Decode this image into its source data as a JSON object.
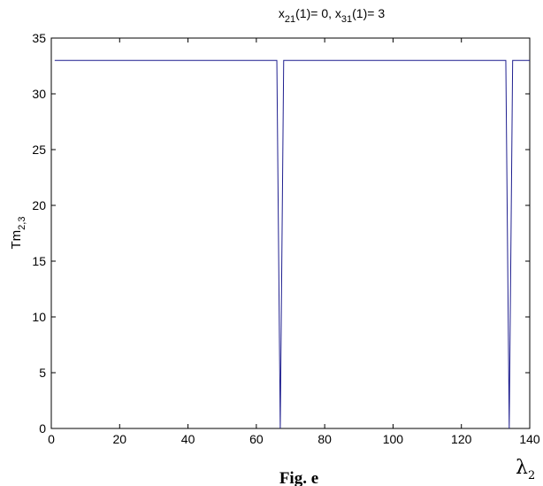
{
  "chart_data": {
    "type": "line",
    "title": {
      "x21_base": "x",
      "x21_sub": "21",
      "x21_rest": "(1)= 0, ",
      "x31_base": "x",
      "x31_sub": "31",
      "x31_rest": "(1)= 3"
    },
    "ylabel": {
      "base": "Tm",
      "sub": "2,3"
    },
    "xlabel": {
      "base": "λ",
      "sub": "2"
    },
    "caption": "Fig. e",
    "xlim": [
      0,
      140
    ],
    "ylim": [
      0,
      35
    ],
    "xticks": [
      0,
      20,
      40,
      60,
      80,
      100,
      120,
      140
    ],
    "yticks": [
      0,
      5,
      10,
      15,
      20,
      25,
      30,
      35
    ],
    "grid": false,
    "series": [
      {
        "color": "#1f1f8f",
        "x": [
          1,
          66,
          67,
          68,
          133,
          134,
          135,
          140
        ],
        "y": [
          33,
          33,
          0,
          33,
          33,
          0,
          33,
          33
        ]
      }
    ]
  }
}
